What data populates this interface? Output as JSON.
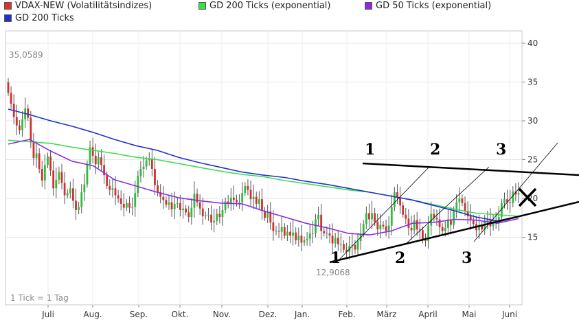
{
  "legend": [
    {
      "label": "VDAX-NEW (Volatilitätsindizes)",
      "color": "#e03030"
    },
    {
      "label": "GD 200 Ticks (exponential)",
      "color": "#3ddc4a"
    },
    {
      "label": "GD 50 Ticks (exponential)",
      "color": "#8a2be2"
    },
    {
      "label": "GD 200 Ticks",
      "color": "#1f2fd1"
    }
  ],
  "footnote": "1 Tick = 1 Tag",
  "chart_data": {
    "type": "candlestick",
    "x_labels": [
      "Juli",
      "Aug.",
      "Sep.",
      "Okt.",
      "Nov.",
      "Dez.",
      "Jan.",
      "Feb.",
      "März",
      "April",
      "Mai",
      "Juni"
    ],
    "y_ticks": [
      15,
      20,
      25,
      30,
      35,
      40
    ],
    "ylim": [
      10,
      40
    ],
    "annotations": {
      "high": "35,0589",
      "low": "12,9068"
    },
    "wave_labels": [
      "1",
      "2",
      "3",
      "1",
      "2",
      "3"
    ],
    "series": [
      {
        "name": "VDAX-NEW (Volatilitätsindizes)",
        "color": "#e03030",
        "close": [
          33.6,
          32.2,
          30.5,
          29.4,
          28.8,
          30.2,
          31.6,
          30.4,
          27.2,
          25.2,
          25.8,
          23.8,
          22.3,
          24.3,
          25.4,
          23.6,
          21.3,
          22.4,
          23.4,
          22.0,
          20.4,
          20.7,
          21.3,
          19.7,
          18.5,
          18.9,
          20.8,
          21.8,
          24.4,
          26.6,
          25.5,
          24.4,
          25.3,
          24.3,
          23.0,
          21.6,
          21.1,
          21.3,
          20.4,
          20.0,
          19.3,
          18.8,
          19.4,
          18.8,
          18.9,
          20.7,
          22.9,
          23.8,
          24.1,
          24.9,
          25.1,
          23.8,
          21.7,
          20.8,
          20.2,
          19.8,
          19.2,
          19.5,
          18.6,
          19.3,
          19.4,
          18.5,
          18.7,
          18.2,
          17.6,
          18.8,
          20.6,
          19.5,
          18.7,
          17.7,
          17.8,
          17.9,
          16.9,
          17.1,
          18.0,
          17.6,
          18.5,
          19.6,
          19.4,
          20.1,
          19.8,
          19.5,
          19.5,
          20.7,
          21.6,
          21.1,
          19.9,
          20.2,
          19.3,
          19.9,
          18.4,
          17.5,
          18.3,
          16.9,
          15.8,
          15.8,
          15.7,
          16.3,
          15.2,
          15.7,
          15.2,
          15.6,
          14.6,
          15.2,
          14.3,
          14.6,
          14.8,
          15.5,
          15.5,
          17.3,
          17.9,
          15.8,
          15.5,
          15.5,
          15.2,
          14.2,
          14.9,
          14.1,
          14.1,
          13.4,
          13.1,
          13.9,
          14.0,
          13.4,
          14.5,
          15.4,
          16.7,
          18.1,
          17.3,
          18.1,
          17.0,
          16.0,
          16.6,
          16.4,
          15.8,
          16.5,
          18.9,
          20.8,
          20.1,
          19.1,
          17.9,
          17.4,
          16.2,
          15.9,
          17.2,
          16.0,
          15.9,
          14.6,
          14.5,
          16.5,
          18.0,
          17.5,
          17.3,
          16.3,
          15.8,
          16.2,
          17.3,
          16.6,
          18.3,
          19.5,
          20.0,
          19.4,
          18.4,
          17.7,
          17.2,
          16.7,
          15.9,
          16.5,
          16.0,
          17.0,
          17.2,
          16.4,
          17.2,
          16.9,
          17.6,
          19.4,
          19.9,
          19.5,
          19.4,
          20.9,
          20.5,
          20.7
        ]
      },
      {
        "name": "GD 200 Ticks (exponential)",
        "color": "#3ddc4a",
        "values": [
          27.5,
          27.3,
          27.1,
          26.6,
          26.2,
          25.8,
          25.3,
          25.0,
          24.5,
          24.0,
          23.5,
          23.1,
          22.8,
          22.3,
          21.9,
          21.5,
          21.1,
          20.8,
          20.3,
          19.8,
          19.2,
          18.6,
          18.1,
          17.9,
          17.7
        ]
      },
      {
        "name": "GD 50 Ticks (exponential)",
        "color": "#8a2be2",
        "values": [
          27.0,
          27.6,
          26.1,
          24.8,
          24.2,
          22.4,
          21.6,
          20.8,
          20.1,
          19.7,
          19.4,
          19.3,
          18.4,
          17.6,
          16.8,
          16.2,
          15.5,
          15.3,
          15.8,
          16.8,
          16.9,
          17.3,
          17.2,
          16.8,
          17.4
        ]
      },
      {
        "name": "GD 200 Ticks",
        "color": "#1f2fd1",
        "values": [
          31.5,
          30.8,
          30.0,
          29.3,
          28.5,
          27.6,
          26.8,
          26.2,
          25.3,
          24.6,
          24.0,
          23.4,
          23.0,
          22.7,
          22.2,
          21.8,
          21.3,
          20.8,
          20.3,
          19.8,
          19.1,
          18.4,
          17.6,
          17.1,
          17.7
        ]
      }
    ]
  }
}
